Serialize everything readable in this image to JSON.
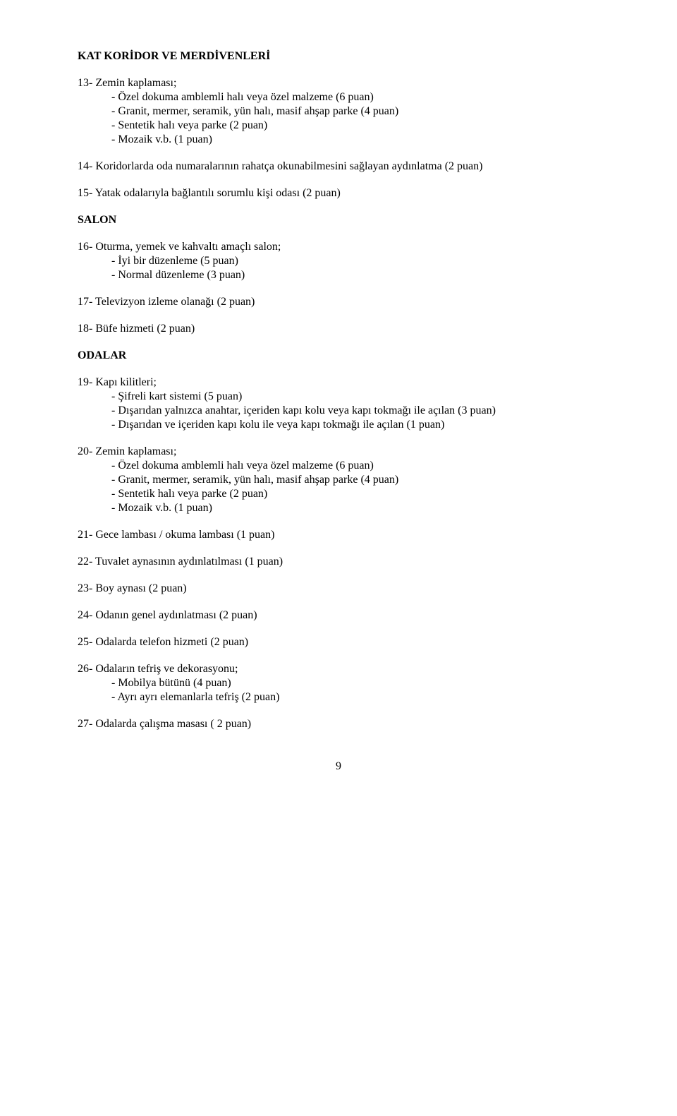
{
  "sections": {
    "h1": "KAT KORİDOR VE MERDİVENLERİ",
    "s13": {
      "title": "13- Zemin kaplaması;",
      "a": "- Özel dokuma amblemli halı veya özel malzeme (6 puan)",
      "b": "- Granit, mermer, seramik, yün halı, masif ahşap parke (4 puan)",
      "c": "- Sentetik halı veya parke (2 puan)",
      "d": "- Mozaik v.b. (1 puan)"
    },
    "s14": "14- Koridorlarda oda numaralarının rahatça okunabilmesini sağlayan aydınlatma (2 puan)",
    "s15": "15- Yatak odalarıyla bağlantılı sorumlu kişi odası (2 puan)",
    "h2": "SALON",
    "s16": {
      "title": "16- Oturma, yemek ve kahvaltı amaçlı salon;",
      "a": "- İyi bir düzenleme (5 puan)",
      "b": "- Normal düzenleme (3 puan)"
    },
    "s17": "17- Televizyon izleme olanağı (2 puan)",
    "s18": "18- Büfe hizmeti (2 puan)",
    "h3": "ODALAR",
    "s19": {
      "title": "19- Kapı kilitleri;",
      "a": "- Şifreli kart sistemi (5 puan)",
      "b": "- Dışarıdan yalnızca anahtar, içeriden kapı kolu veya kapı tokmağı ile açılan (3 puan)",
      "c": "- Dışarıdan ve içeriden kapı kolu ile veya kapı tokmağı ile açılan (1 puan)"
    },
    "s20": {
      "title": "20- Zemin kaplaması;",
      "a": "- Özel dokuma amblemli halı veya özel malzeme (6 puan)",
      "b": "- Granit, mermer, seramik, yün halı, masif ahşap parke (4 puan)",
      "c": "- Sentetik halı veya parke (2 puan)",
      "d": "- Mozaik v.b. (1 puan)"
    },
    "s21": "21- Gece lambası / okuma lambası (1 puan)",
    "s22": "22- Tuvalet aynasının aydınlatılması (1 puan)",
    "s23": "23- Boy aynası (2 puan)",
    "s24": "24- Odanın genel aydınlatması (2 puan)",
    "s25": "25- Odalarda telefon hizmeti (2 puan)",
    "s26": {
      "title": "26- Odaların tefriş ve dekorasyonu;",
      "a": "- Mobilya bütünü (4 puan)",
      "b": "- Ayrı ayrı elemanlarla tefriş (2 puan)"
    },
    "s27": "27- Odalarda çalışma masası ( 2 puan)",
    "pagenum": "9"
  }
}
